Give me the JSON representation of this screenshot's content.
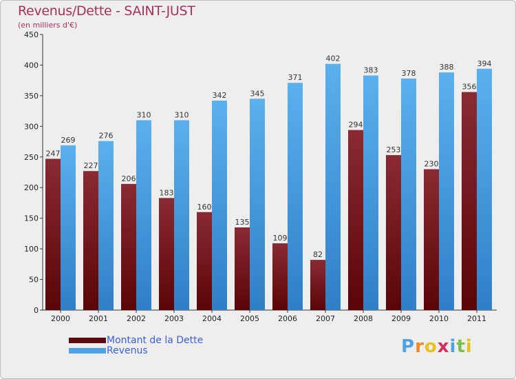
{
  "header": {
    "title": "Revenus/Dette - SAINT-JUST",
    "subtitle": "(en milliers d'€)"
  },
  "chart_data": {
    "type": "bar",
    "title": "Revenus/Dette - SAINT-JUST",
    "subtitle": "(en milliers d'€)",
    "categories": [
      "2000",
      "2001",
      "2002",
      "2003",
      "2004",
      "2005",
      "2006",
      "2007",
      "2008",
      "2009",
      "2010",
      "2011"
    ],
    "series": [
      {
        "name": "Montant de la Dette",
        "color": "#7a1a22",
        "values": [
          247,
          227,
          206,
          183,
          160,
          135,
          109,
          82,
          294,
          253,
          230,
          356
        ]
      },
      {
        "name": "Revenus",
        "color": "#4da3e6",
        "values": [
          269,
          276,
          310,
          310,
          342,
          345,
          371,
          402,
          383,
          378,
          388,
          394
        ]
      }
    ],
    "yticks": [
      0,
      50,
      100,
      150,
      200,
      250,
      300,
      350,
      400,
      450
    ],
    "ylim": [
      0,
      450
    ],
    "grid": false,
    "legend_position": "bottom-left",
    "data_labels": true
  },
  "legend": {
    "items": [
      {
        "label": "Montant de la Dette",
        "color": "#5c0a10"
      },
      {
        "label": "Revenus",
        "color": "#4da3e6"
      }
    ]
  },
  "brand": {
    "letters": [
      "P",
      "r",
      "o",
      "x",
      "i",
      "t",
      "i"
    ],
    "colors": [
      "#4da3e6",
      "#f08a1c",
      "#e8c21c",
      "#d6305a",
      "#4da3e6",
      "#7cc04a",
      "#e8c21c"
    ]
  }
}
